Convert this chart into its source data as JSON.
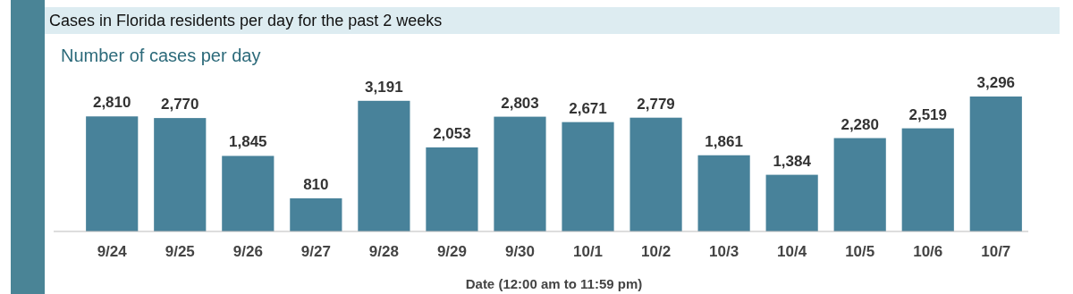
{
  "chart_data": {
    "type": "bar",
    "title": "Cases in Florida residents per day for the past 2 weeks",
    "subtitle": "Number of cases per day",
    "xlabel": "Date (12:00 am to 11:59 pm)",
    "categories": [
      "9/24",
      "9/25",
      "9/26",
      "9/27",
      "9/28",
      "9/29",
      "9/30",
      "10/1",
      "10/2",
      "10/3",
      "10/4",
      "10/5",
      "10/6",
      "10/7"
    ],
    "values": [
      2810,
      2770,
      1845,
      810,
      3191,
      2053,
      2803,
      2671,
      2779,
      1861,
      1384,
      2280,
      2519,
      3296
    ],
    "value_labels": [
      "2,810",
      "2,770",
      "1,845",
      "810",
      "3,191",
      "2,053",
      "2,803",
      "2,671",
      "2,779",
      "1,861",
      "1,384",
      "2,280",
      "2,519",
      "3,296"
    ],
    "color": "#48829a"
  }
}
